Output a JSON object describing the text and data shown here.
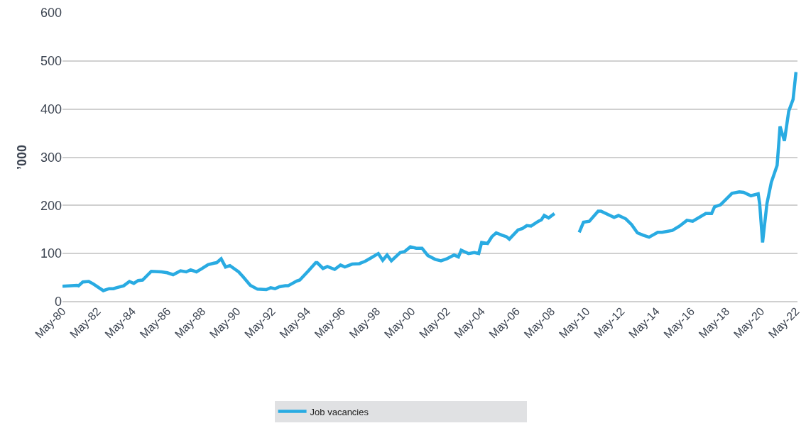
{
  "chart_data": {
    "type": "line",
    "ylabel": "’000",
    "x": [
      "1980-05",
      "1981-03",
      "1981-04",
      "1981-07",
      "1981-11",
      "1982-02",
      "1982-09",
      "1983-01",
      "1983-04",
      "1983-06",
      "1983-11",
      "1984-03",
      "1984-06",
      "1984-09",
      "1984-12",
      "1985-06",
      "1986-01",
      "1986-05",
      "1986-09",
      "1987-02",
      "1987-06",
      "1987-09",
      "1988-01",
      "1988-05",
      "1988-09",
      "1989-01",
      "1989-03",
      "1989-06",
      "1989-09",
      "1989-12",
      "1990-06",
      "1990-09",
      "1991-02",
      "1991-07",
      "1992-01",
      "1992-04",
      "1992-07",
      "1992-10",
      "1993-02",
      "1993-04",
      "1993-10",
      "1993-12",
      "1994-06",
      "1994-11",
      "1994-12",
      "1995-04",
      "1995-07",
      "1995-12",
      "1996-04",
      "1996-07",
      "1996-12",
      "1997-05",
      "1997-09",
      "1998-01",
      "1998-06",
      "1998-09",
      "1998-12",
      "1999-03",
      "1999-09",
      "1999-12",
      "2000-04",
      "2000-08",
      "2000-12",
      "2001-04",
      "2001-09",
      "2002-01",
      "2002-05",
      "2002-10",
      "2003-01",
      "2003-03",
      "2003-08",
      "2003-12",
      "2004-03",
      "2004-05",
      "2004-09",
      "2004-12",
      "2005-03",
      "2005-07",
      "2005-10",
      "2005-12",
      "2006-06",
      "2006-09",
      "2006-12",
      "2007-03",
      "2007-08",
      "2007-10",
      "2007-12",
      "2008-03",
      "2008-07",
      "2009-02",
      "2009-12",
      "2010-03",
      "2010-07",
      "2011-01",
      "2011-03",
      "2011-12",
      "2012-03",
      "2012-08",
      "2012-12",
      "2013-04",
      "2013-08",
      "2013-12",
      "2014-06",
      "2014-09",
      "2015-04",
      "2015-09",
      "2016-02",
      "2016-06",
      "2017-03",
      "2017-07",
      "2017-09",
      "2018-01",
      "2018-09",
      "2019-02",
      "2019-05",
      "2019-10",
      "2020-03",
      "2020-04",
      "2020-06",
      "2020-09",
      "2020-12",
      "2021-04",
      "2021-05",
      "2021-06",
      "2021-09",
      "2021-12",
      "2022-03",
      "2022-05"
    ],
    "series": [
      {
        "name": "Job vacancies",
        "color": "#29abe2",
        "values": [
          32,
          34,
          33,
          41,
          42,
          37,
          23,
          27,
          27,
          29,
          33,
          42,
          38,
          44,
          45,
          63,
          62,
          60,
          56,
          64,
          62,
          66,
          62,
          69,
          77,
          80,
          81,
          89,
          72,
          75,
          62,
          52,
          34,
          26,
          25,
          29,
          27,
          31,
          33,
          33,
          43,
          45,
          64,
          81,
          81,
          69,
          73,
          67,
          76,
          72,
          78,
          79,
          84,
          91,
          100,
          86,
          97,
          85,
          102,
          104,
          114,
          111,
          111,
          96,
          88,
          85,
          89,
          97,
          93,
          107,
          100,
          102,
          100,
          123,
          121,
          135,
          143,
          138,
          135,
          130,
          149,
          152,
          158,
          157,
          167,
          170,
          179,
          174,
          183,
          null,
          144,
          165,
          167,
          188,
          188,
          175,
          179,
          172,
          160,
          143,
          138,
          134,
          144,
          144,
          148,
          157,
          169,
          167,
          183,
          183,
          197,
          201,
          225,
          228,
          227,
          220,
          224,
          204,
          123,
          204,
          248,
          283,
          322,
          364,
          334,
          396,
          420,
          477
        ]
      }
    ],
    "xlim": [
      "1980-05",
      "2022-06"
    ],
    "xticks": [
      {
        "value": "1980-05",
        "label": "May-80"
      },
      {
        "value": "1982-05",
        "label": "May-82"
      },
      {
        "value": "1984-05",
        "label": "May-84"
      },
      {
        "value": "1986-05",
        "label": "May-86"
      },
      {
        "value": "1988-05",
        "label": "May-88"
      },
      {
        "value": "1990-05",
        "label": "May-90"
      },
      {
        "value": "1992-05",
        "label": "May-92"
      },
      {
        "value": "1994-05",
        "label": "May-94"
      },
      {
        "value": "1996-05",
        "label": "May-96"
      },
      {
        "value": "1998-05",
        "label": "May-98"
      },
      {
        "value": "2000-05",
        "label": "May-00"
      },
      {
        "value": "2002-05",
        "label": "May-02"
      },
      {
        "value": "2004-05",
        "label": "May-04"
      },
      {
        "value": "2006-05",
        "label": "May-06"
      },
      {
        "value": "2008-05",
        "label": "May-08"
      },
      {
        "value": "2010-05",
        "label": "May-10"
      },
      {
        "value": "2012-05",
        "label": "May-12"
      },
      {
        "value": "2014-05",
        "label": "May-14"
      },
      {
        "value": "2016-05",
        "label": "May-16"
      },
      {
        "value": "2018-05",
        "label": "May-18"
      },
      {
        "value": "2020-05",
        "label": "May-20"
      },
      {
        "value": "2022-05",
        "label": "May-22"
      }
    ],
    "ylim": [
      0,
      600
    ],
    "yticks": [
      0,
      100,
      200,
      300,
      400,
      500,
      600
    ],
    "grid": "y",
    "legend": "bottom",
    "marker": "none",
    "line_style": "solid"
  }
}
